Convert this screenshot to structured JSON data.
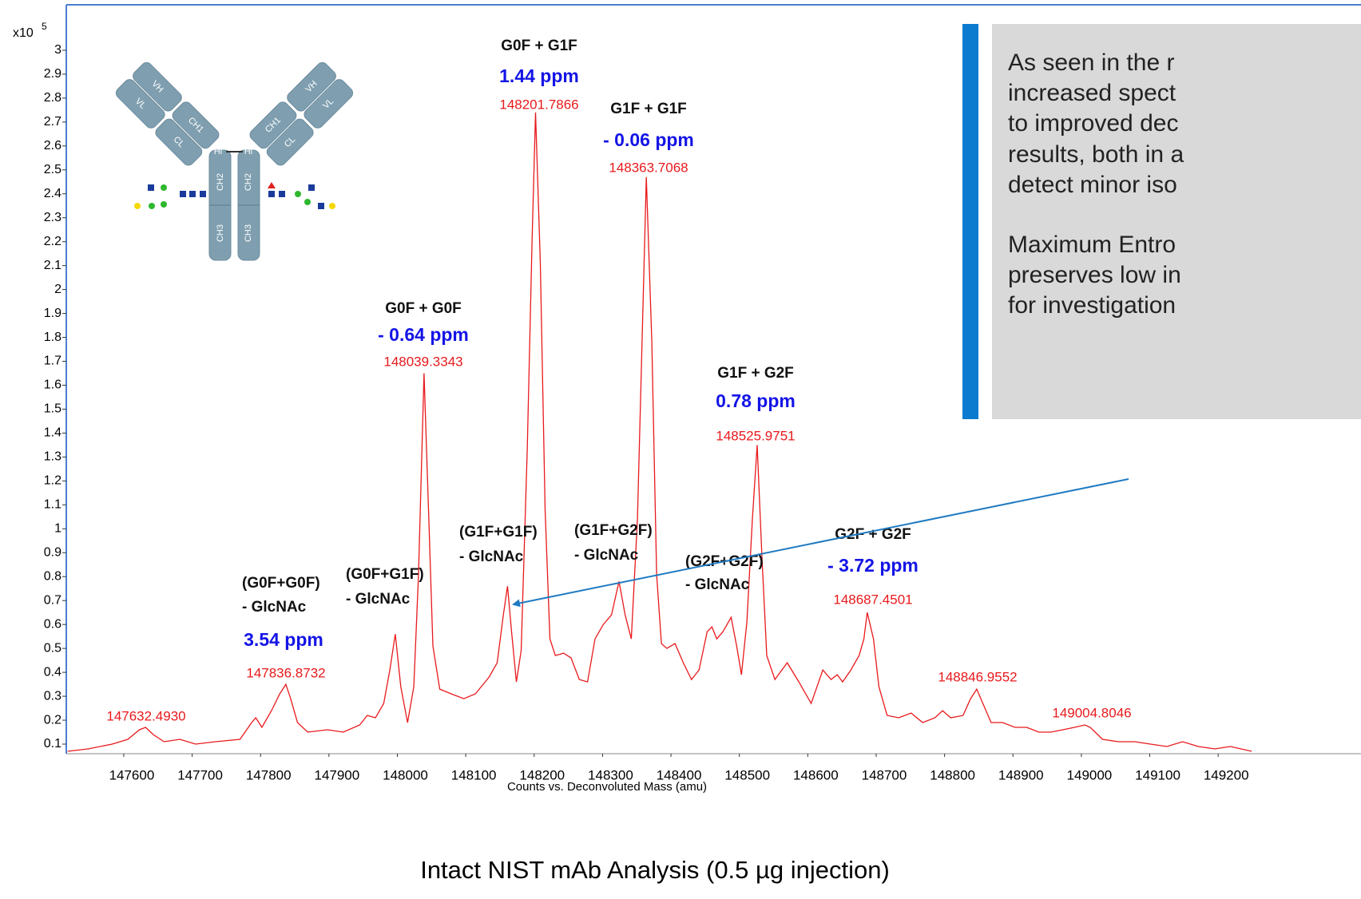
{
  "chart_data": {
    "type": "line",
    "caption": "Intact NIST mAb Analysis (0.5 µg injection)",
    "x_label": "Counts vs. Deconvoluted Mass (amu)",
    "y_multiplier": "x10",
    "y_exponent": "5",
    "color": "#e8191c",
    "xlim": [
      147516,
      149250
    ],
    "ylim": [
      0.06,
      3.19
    ],
    "xticks": [
      147600,
      147700,
      147800,
      147900,
      148000,
      148100,
      148200,
      148300,
      148400,
      148500,
      148600,
      148700,
      148800,
      148900,
      149000,
      149100,
      149200
    ],
    "yticks": [
      0.1,
      0.2,
      0.3,
      0.4,
      0.5,
      0.6,
      0.7,
      0.8,
      0.9,
      1,
      1.1,
      1.2,
      1.3,
      1.4,
      1.5,
      1.6,
      1.7,
      1.8,
      1.9,
      2,
      2.1,
      2.2,
      2.3,
      2.4,
      2.5,
      2.6,
      2.7,
      2.8,
      2.9,
      3
    ],
    "x": [
      147518,
      147548,
      147583,
      147606,
      147623,
      147632,
      147643,
      147659,
      147682,
      147705,
      147734,
      147770,
      147787,
      147793,
      147802,
      147816,
      147828,
      147837,
      147844,
      147854,
      147869,
      147898,
      147921,
      147945,
      147956,
      147968,
      147980,
      147989,
      147997,
      148005,
      148015,
      148024,
      148031,
      148039,
      148046,
      148052,
      148062,
      148079,
      148097,
      148114,
      148134,
      148146,
      148155,
      148161,
      148167,
      148174,
      148181,
      148190,
      148197,
      148202,
      148209,
      148216,
      148223,
      148231,
      148243,
      148254,
      148266,
      148278,
      148289,
      148301,
      148313,
      148324,
      148333,
      148342,
      148351,
      148358,
      148364,
      148372,
      148379,
      148386,
      148394,
      148406,
      148418,
      148430,
      148441,
      148453,
      148460,
      148467,
      148476,
      148488,
      148496,
      148503,
      148511,
      148519,
      148526,
      148533,
      148540,
      148552,
      148570,
      148587,
      148605,
      148622,
      148634,
      148643,
      148651,
      148663,
      148675,
      148682,
      148687,
      148696,
      148704,
      148716,
      148733,
      148751,
      148768,
      148786,
      148797,
      148809,
      148827,
      148838,
      148847,
      148856,
      148868,
      148885,
      148903,
      148920,
      148938,
      148955,
      148973,
      148990,
      149005,
      149013,
      149031,
      149054,
      149078,
      149101,
      149125,
      149148,
      149171,
      149195,
      149218,
      149249
    ],
    "values": [
      0.07,
      0.08,
      0.1,
      0.12,
      0.16,
      0.17,
      0.14,
      0.11,
      0.12,
      0.1,
      0.11,
      0.12,
      0.19,
      0.21,
      0.17,
      0.24,
      0.31,
      0.35,
      0.29,
      0.19,
      0.15,
      0.16,
      0.15,
      0.18,
      0.22,
      0.21,
      0.27,
      0.41,
      0.56,
      0.34,
      0.19,
      0.34,
      0.81,
      1.65,
      1.04,
      0.51,
      0.33,
      0.31,
      0.29,
      0.31,
      0.38,
      0.44,
      0.64,
      0.76,
      0.57,
      0.36,
      0.49,
      1.34,
      2.21,
      2.74,
      2.11,
      1.08,
      0.54,
      0.47,
      0.48,
      0.46,
      0.37,
      0.36,
      0.54,
      0.6,
      0.64,
      0.78,
      0.64,
      0.54,
      1.04,
      1.81,
      2.47,
      1.78,
      0.81,
      0.52,
      0.5,
      0.52,
      0.44,
      0.37,
      0.41,
      0.57,
      0.59,
      0.54,
      0.57,
      0.63,
      0.51,
      0.39,
      0.61,
      1.04,
      1.35,
      0.88,
      0.47,
      0.37,
      0.44,
      0.36,
      0.27,
      0.41,
      0.37,
      0.39,
      0.36,
      0.41,
      0.47,
      0.54,
      0.65,
      0.54,
      0.34,
      0.22,
      0.21,
      0.23,
      0.19,
      0.21,
      0.24,
      0.21,
      0.22,
      0.29,
      0.33,
      0.27,
      0.19,
      0.19,
      0.17,
      0.17,
      0.15,
      0.15,
      0.16,
      0.17,
      0.18,
      0.17,
      0.12,
      0.11,
      0.11,
      0.1,
      0.09,
      0.11,
      0.09,
      0.08,
      0.09,
      0.07
    ],
    "annotations": [
      {
        "mass": "147632.4930"
      },
      {
        "label": [
          "(G0F+G0F)",
          "- GlcNAc"
        ],
        "ppm": "3.54 ppm",
        "mass": "147836.8732"
      },
      {
        "label": [
          "(G0F+G1F)",
          "- GlcNAc"
        ]
      },
      {
        "label": [
          "G0F + G0F"
        ],
        "ppm": "- 0.64 ppm",
        "mass": "148039.3343"
      },
      {
        "label": [
          "(G1F+G1F)",
          "- GlcNAc"
        ]
      },
      {
        "label": [
          "G0F + G1F"
        ],
        "ppm": "1.44 ppm",
        "mass": "148201.7866"
      },
      {
        "label": [
          "(G1F+G2F)",
          "- GlcNAc"
        ]
      },
      {
        "label": [
          "G1F + G1F"
        ],
        "ppm": "- 0.06 ppm",
        "mass": "148363.7068"
      },
      {
        "label": [
          "(G2F+G2F)",
          "- GlcNAc"
        ]
      },
      {
        "label": [
          "G1F + G2F"
        ],
        "ppm": "0.78 ppm",
        "mass": "148525.9751"
      },
      {
        "label": [
          "G2F + G2F"
        ],
        "ppm": "- 3.72 ppm",
        "mass": "148687.4501"
      },
      {
        "mass": "148846.9552"
      },
      {
        "mass": "149004.8046"
      }
    ],
    "antibody": {
      "vh": "VH",
      "vl": "VL",
      "ch1": "CH1",
      "cl": "CL",
      "hinge": "Hi",
      "ch2": "CH2",
      "ch3": "CH3"
    },
    "note": [
      "As seen in the r",
      "increased spect",
      "to improved dec",
      "results, both in a",
      "detect minor iso",
      "Maximum Entro",
      "preserves low in",
      "for investigation"
    ]
  }
}
